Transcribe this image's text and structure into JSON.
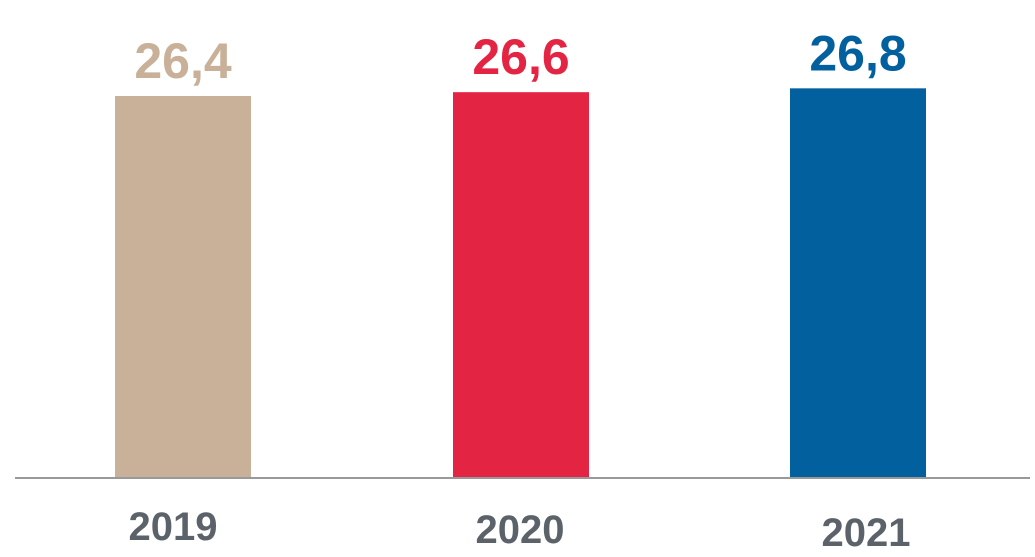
{
  "chart_data": {
    "type": "bar",
    "categories": [
      "2019",
      "2020",
      "2021"
    ],
    "values": [
      26.4,
      26.6,
      26.8
    ],
    "value_labels": [
      "26,4",
      "26,6",
      "26,8"
    ],
    "bar_colors": [
      "#c8b198",
      "#e32443",
      "#03609f"
    ],
    "axis_color": "#999999",
    "tick_label_color": "#5c626a",
    "title": "",
    "xlabel": "",
    "ylabel": "",
    "grid": false,
    "legend": "none"
  }
}
